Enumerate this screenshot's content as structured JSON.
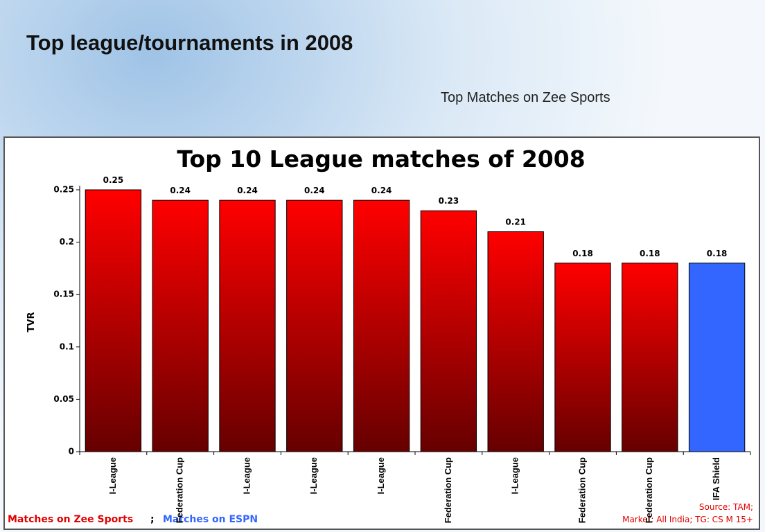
{
  "header": {
    "title": "Top league/tournaments in 2008",
    "subtitle": "Top Matches on Zee Sports"
  },
  "chart_data": {
    "type": "bar",
    "title": "Top 10 League matches of 2008",
    "y_label": "TVR",
    "categories": [
      "I-League",
      "Federation Cup",
      "I-League",
      "I-League",
      "I-League",
      "Federation Cup",
      "I-League",
      "Federation Cup",
      "Federation Cup",
      "IFA Shield"
    ],
    "values": [
      0.25,
      0.24,
      0.24,
      0.24,
      0.24,
      0.23,
      0.21,
      0.18,
      0.18,
      0.18
    ],
    "colors": [
      "#ff0000",
      "#ff0000",
      "#ff0000",
      "#ff0000",
      "#ff0000",
      "#ff0000",
      "#ff0000",
      "#ff0000",
      "#ff0000",
      "#3366ff"
    ],
    "fill_style": [
      "gradient",
      "gradient",
      "gradient",
      "gradient",
      "gradient",
      "gradient",
      "gradient",
      "gradient",
      "gradient",
      "solid"
    ],
    "ylim": [
      0,
      0.25
    ],
    "yticks": [
      0,
      0.05,
      0.1,
      0.15,
      0.2,
      0.25
    ],
    "footer": {
      "zee": "Matches on Zee Sports",
      "separator": ";",
      "espn": "Matches on ESPN",
      "source": "Source: TAM;",
      "market": "Market: All India; TG: CS M 15+"
    }
  }
}
